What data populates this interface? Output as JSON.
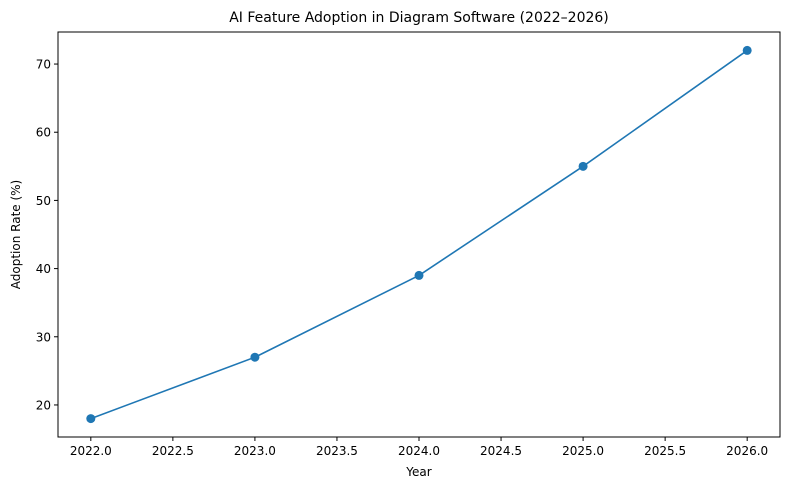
{
  "chart_data": {
    "type": "line",
    "title": "AI Feature Adoption in Diagram Software (2022–2026)",
    "xlabel": "Year",
    "ylabel": "Adoption Rate (%)",
    "x": [
      2022,
      2023,
      2024,
      2025,
      2026
    ],
    "series": [
      {
        "name": "Adoption Rate",
        "values": [
          18,
          27,
          39,
          55,
          72
        ],
        "color": "#1f77b4",
        "marker": "circle"
      }
    ],
    "xlim": [
      2021.8,
      2026.2
    ],
    "ylim": [
      15.3,
      74.7
    ],
    "x_ticks": [
      "2022.0",
      "2022.5",
      "2023.0",
      "2023.5",
      "2024.0",
      "2024.5",
      "2025.0",
      "2025.5",
      "2026.0"
    ],
    "y_ticks": [
      "20",
      "30",
      "40",
      "50",
      "60",
      "70"
    ],
    "grid": false,
    "legend": null
  }
}
